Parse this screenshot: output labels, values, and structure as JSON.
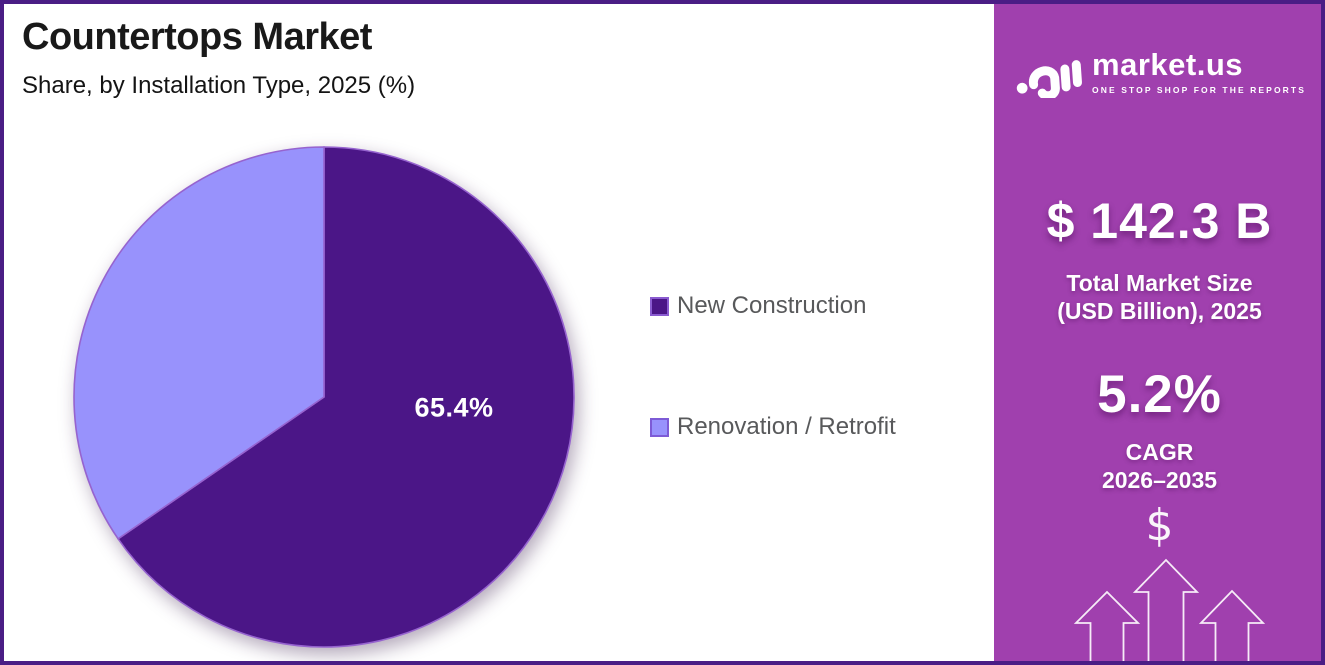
{
  "header": {
    "title": "Countertops Market",
    "subtitle": "Share, by Installation Type, 2025 (%)"
  },
  "chart_data": {
    "type": "pie",
    "title": "Countertops Market",
    "subtitle": "Share, by Installation Type, 2025 (%)",
    "unit": "%",
    "start_at": "12-oclock",
    "direction": "clockwise",
    "legend_position": "right",
    "stroke_color": "#9663cf",
    "slices": [
      {
        "label": "New Construction",
        "value": 65.4,
        "data_label": "65.4%",
        "color": "#4b1687",
        "swatch_border": "#8a5bd0"
      },
      {
        "label": "Renovation / Retrofit",
        "value": 34.6,
        "data_label": "",
        "color": "#9892fc",
        "swatch_border": "#7d5bd6"
      }
    ]
  },
  "sidebar": {
    "brand": {
      "name": "market.us",
      "tagline": "ONE STOP SHOP FOR THE REPORTS"
    },
    "market_size": {
      "value": "$ 142.3 B",
      "caption_line1": "Total Market Size",
      "caption_line2": "(USD Billion), 2025"
    },
    "cagr": {
      "value": "5.2%",
      "label_line1": "CAGR",
      "label_line2": "2026–2035"
    },
    "dollar_glyph": "$",
    "colors": {
      "bg_top": "#5e2b80",
      "bg_mid": "#a347ae",
      "bg_bottom": "#a93bb0",
      "edge_highlight": "#ff6eaf"
    }
  }
}
